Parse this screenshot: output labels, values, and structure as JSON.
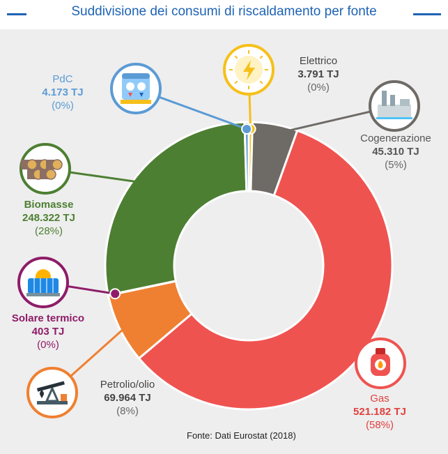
{
  "title": "Suddivisione dei consumi di riscaldamento per fonte",
  "source": "Fonte: Dati Eurostat (2018)",
  "colors": {
    "accent": "#1e63b4",
    "background": "#eeeeee"
  },
  "chart_data": {
    "type": "pie",
    "donut": true,
    "unit": "TJ",
    "slices": [
      {
        "key": "elettrico",
        "name": "Elettrico",
        "value_label": "3.791 TJ",
        "pct_label": "(0%)",
        "value": 3791,
        "color": "#f6c01b",
        "label_color": "#444444",
        "icon": "lightning-bolt-icon"
      },
      {
        "key": "cogenerazione",
        "name": "Cogenerazione",
        "value_label": "45.310 TJ",
        "pct_label": "(5%)",
        "value": 45310,
        "color": "#6e6a66",
        "label_color": "#555555",
        "icon": "factory-icon"
      },
      {
        "key": "gas",
        "name": "Gas",
        "value_label": "521.182 TJ",
        "pct_label": "(58%)",
        "value": 521182,
        "color": "#ef5350",
        "label_color": "#e0413e",
        "icon": "gas-cylinder-icon"
      },
      {
        "key": "petrolio",
        "name": "Petrolio/olio",
        "value_label": "69.964 TJ",
        "pct_label": "(8%)",
        "value": 69964,
        "color": "#ef8031",
        "label_color": "#444444",
        "icon": "oil-pump-icon"
      },
      {
        "key": "solare",
        "name": "Solare termico",
        "value_label": "403 TJ",
        "pct_label": "(0%)",
        "value": 403,
        "color": "#8e1c68",
        "label_color": "#8e1c68",
        "icon": "solar-panel-icon"
      },
      {
        "key": "biomasse",
        "name": "Biomasse",
        "value_label": "248.322 TJ",
        "pct_label": "(28%)",
        "value": 248322,
        "color": "#4d7f32",
        "label_color": "#4d7f32",
        "icon": "firewood-icon"
      },
      {
        "key": "pdc",
        "name": "PdC",
        "value_label": "4.173 TJ",
        "pct_label": "(0%)",
        "value": 4173,
        "color": "#5b9bd5",
        "label_color": "#5b9bd5",
        "icon": "heat-pump-icon"
      }
    ]
  }
}
